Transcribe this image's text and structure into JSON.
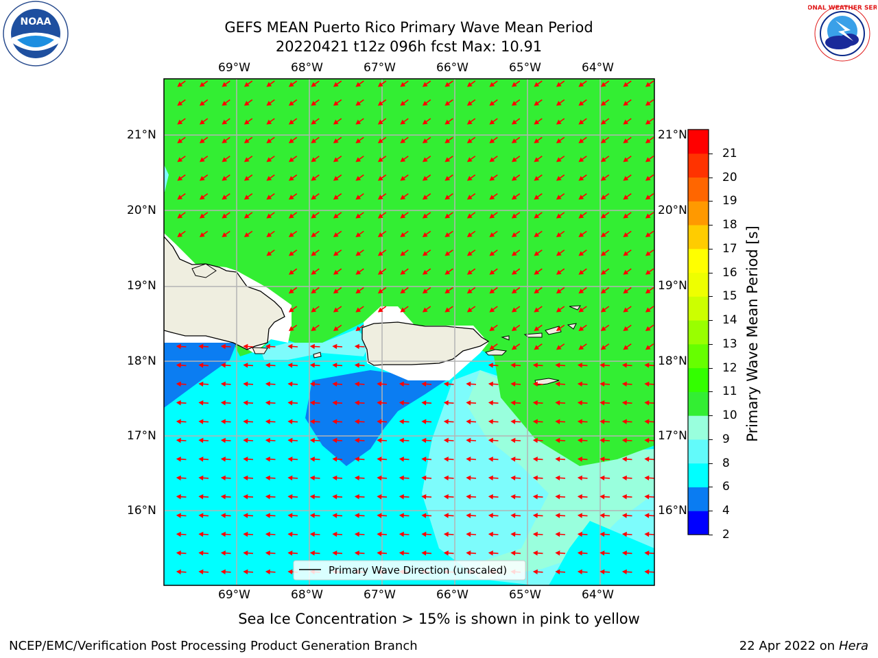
{
  "header": {
    "title_line1": "GEFS MEAN Puerto Rico Primary Wave Mean Period",
    "title_line2": "20220421 t12z 096h fcst   Max: 10.91"
  },
  "logos": {
    "noaa_text": "NOAA",
    "nws_text": "NATIONAL WEATHER SERVICE"
  },
  "map": {
    "lon_ticks": [
      "69°W",
      "68°W",
      "67°W",
      "66°W",
      "65°W",
      "64°W"
    ],
    "lat_ticks": [
      "21°N",
      "20°N",
      "19°N",
      "18°N",
      "17°N",
      "16°N"
    ],
    "legend_label": "Primary Wave Direction (unscaled)",
    "colors": {
      "ocean_green": "#33ee33",
      "ocean_cyan": "#00ffff",
      "ocean_lightcyan": "#7dfcfc",
      "ocean_mint": "#99ffdd",
      "ocean_blue": "#0b7df2",
      "land": "#efeee0",
      "arrow": "#ff0000",
      "grid": "#b4b4b4"
    }
  },
  "colorbar": {
    "label": "Primary Wave Mean Period [s]",
    "ticks": [
      "2",
      "4",
      "6",
      "8",
      "9",
      "10",
      "11",
      "12",
      "13",
      "14",
      "15",
      "16",
      "17",
      "18",
      "19",
      "20",
      "21"
    ],
    "colors": [
      "#0000ff",
      "#0a7cf2",
      "#00ffff",
      "#62fafa",
      "#99ffdd",
      "#33ee33",
      "#33ff00",
      "#66ff00",
      "#99ff00",
      "#ccff00",
      "#eeff00",
      "#ffff00",
      "#ffcc00",
      "#ff9900",
      "#ff6600",
      "#ff3300",
      "#ff0000"
    ]
  },
  "caption": "Sea Ice Concentration > 15% is shown in pink to yellow",
  "footer": {
    "left": "NCEP/EMC/Verification Post Processing Product Generation Branch",
    "date": "22 Apr 2022 on ",
    "host": "Hera"
  }
}
